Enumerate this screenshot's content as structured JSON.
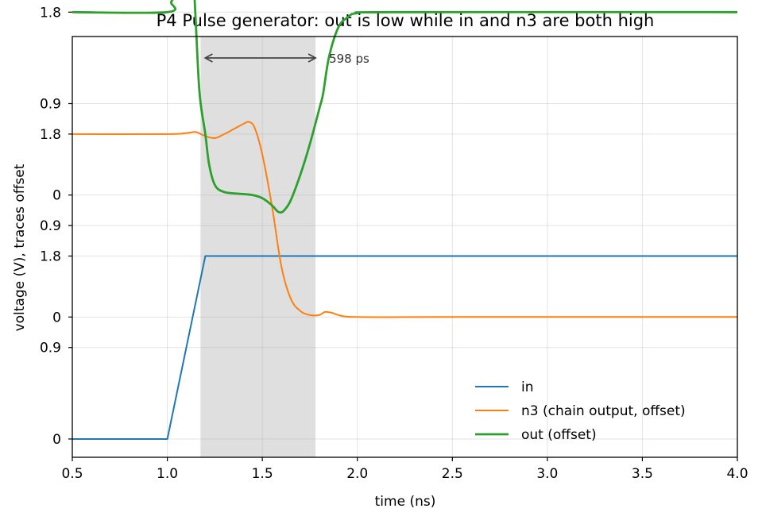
{
  "chart_data": {
    "type": "line",
    "title": "P4  Pulse generator: out is low while in and n3 are both high",
    "xlabel": "time (ns)",
    "ylabel": "voltage (V), traces offset",
    "xlim": [
      0.5,
      4.0
    ],
    "ylim": [
      -0.18,
      3.96
    ],
    "x_ticks": [
      "0.5",
      "1.0",
      "1.5",
      "2.0",
      "2.5",
      "3.0",
      "3.5",
      "4.0"
    ],
    "y_tick_labels": [
      "0",
      "0.9",
      "1.8"
    ],
    "grid": true,
    "legend_placement": "lower-right",
    "shaded_interval": [
      1.175,
      1.78
    ],
    "annotation": {
      "text": "598 ps",
      "x_start": 1.2,
      "x_end": 1.78
    },
    "series": [
      {
        "name": "in",
        "color": "#1f77b4",
        "stroke_width": 2,
        "offset": 0,
        "x": [
          0.5,
          1.0,
          1.2,
          4.0
        ],
        "y": [
          0.0,
          0.0,
          1.8,
          1.8
        ]
      },
      {
        "name": "n3 (chain output, offset)",
        "color": "#ff7f0e",
        "stroke_width": 2,
        "offset": 1.2,
        "x": [
          0.5,
          1.0,
          1.1,
          1.15,
          1.2,
          1.25,
          1.3,
          1.35,
          1.4,
          1.43,
          1.46,
          1.5,
          1.55,
          1.6,
          1.65,
          1.7,
          1.75,
          1.8,
          1.83,
          1.87,
          1.9,
          2.0,
          2.5,
          4.0
        ],
        "y": [
          1.8,
          1.8,
          1.81,
          1.82,
          1.78,
          1.76,
          1.8,
          1.85,
          1.9,
          1.92,
          1.86,
          1.6,
          1.1,
          0.5,
          0.18,
          0.06,
          0.02,
          0.02,
          0.05,
          0.04,
          0.02,
          0.0,
          0.0,
          0.0
        ]
      },
      {
        "name": "out (offset)",
        "color": "#2ca02c",
        "stroke_width": 2.8,
        "offset": 2.4,
        "x": [
          0.5,
          1.0,
          1.02,
          1.05,
          1.08,
          1.1,
          1.12,
          1.13,
          1.14,
          1.15,
          1.17,
          1.2,
          1.22,
          1.25,
          1.3,
          1.4,
          1.45,
          1.5,
          1.55,
          1.58,
          1.6,
          1.62,
          1.65,
          1.7,
          1.75,
          1.8,
          1.82,
          1.85,
          1.9,
          1.95,
          2.0,
          2.2,
          4.0
        ],
        "y": [
          1.8,
          1.8,
          1.9,
          1.98,
          2.08,
          2.15,
          2.18,
          2.15,
          2.05,
          1.7,
          1.0,
          0.6,
          0.3,
          0.1,
          0.03,
          0.01,
          0.0,
          -0.03,
          -0.1,
          -0.16,
          -0.17,
          -0.14,
          -0.05,
          0.2,
          0.5,
          0.85,
          1.0,
          1.35,
          1.65,
          1.75,
          1.79,
          1.8,
          1.8
        ]
      }
    ]
  }
}
